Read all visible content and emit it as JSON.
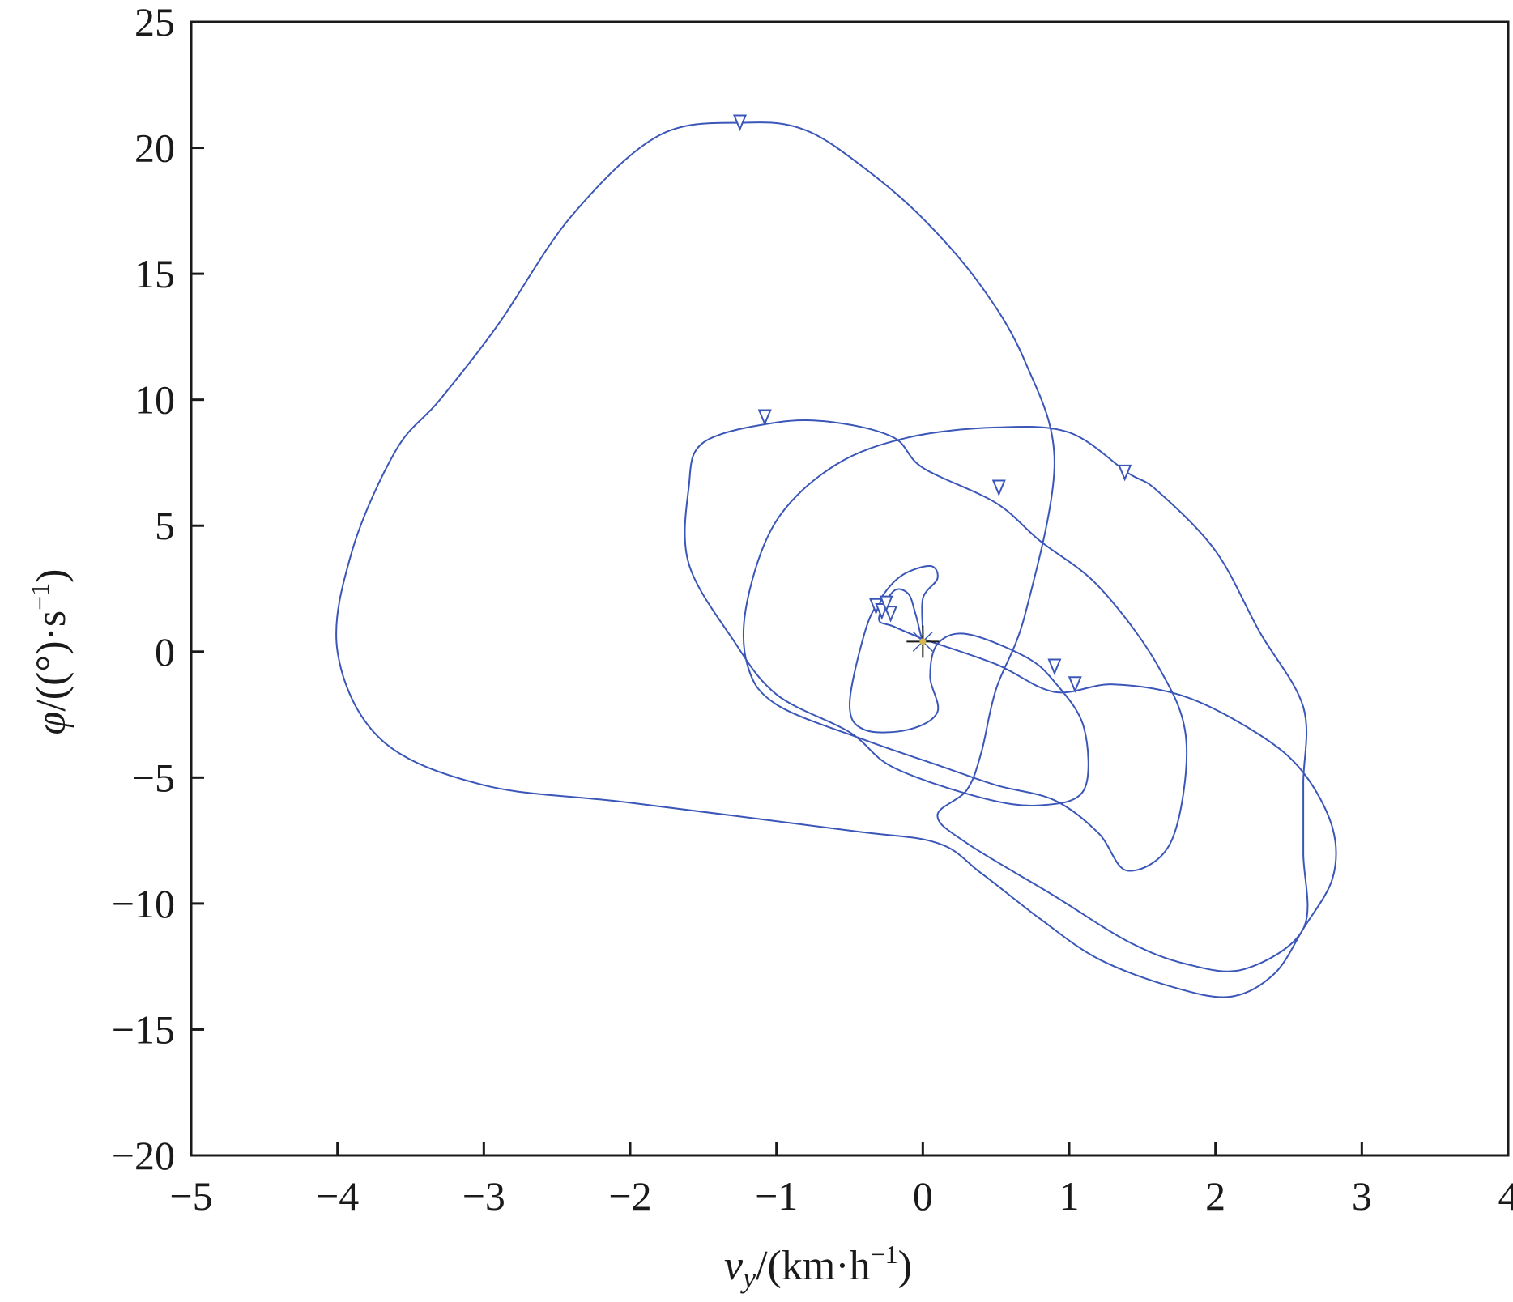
{
  "chart_data": {
    "type": "line",
    "xlabel": "v_y/(km·h⁻¹)",
    "xlabel_parts": {
      "sym": "v",
      "sub": "y",
      "unit": "/(km·h",
      "exp": "−1",
      "close": ")"
    },
    "ylabel": "φ/((°)·s⁻¹)",
    "ylabel_parts": {
      "sym": "φ",
      "unit": "/((°)·s",
      "exp": "−1",
      "close": ")"
    },
    "xlim": [
      -5,
      4
    ],
    "ylim": [
      -20,
      25
    ],
    "xticks": [
      -5,
      -4,
      -3,
      -2,
      -1,
      0,
      1,
      2,
      3,
      4
    ],
    "yticks": [
      -20,
      -15,
      -10,
      -5,
      0,
      5,
      10,
      15,
      20,
      25
    ],
    "xtick_labels": [
      "−5",
      "−4",
      "−3",
      "−2",
      "−1",
      "0",
      "1",
      "2",
      "3",
      "4"
    ],
    "ytick_labels": [
      "−20",
      "−15",
      "−10",
      "−5",
      "0",
      "5",
      "10",
      "15",
      "20",
      "25"
    ],
    "grid": false,
    "colors": {
      "curve": "#3a56b8",
      "center": "#d4b84a",
      "axis": "#1a1a1a"
    },
    "series": [
      {
        "points": [
          [
            0,
            0.5
          ],
          [
            0.5,
            -0.5
          ],
          [
            0.9,
            -1.6
          ],
          [
            1.3,
            -1.3
          ],
          [
            1.8,
            -1.8
          ],
          [
            2.3,
            -3.3
          ],
          [
            2.6,
            -4.8
          ],
          [
            2.8,
            -7
          ],
          [
            2.8,
            -9
          ],
          [
            2.6,
            -11
          ],
          [
            2.4,
            -12.8
          ],
          [
            2.1,
            -13.7
          ],
          [
            1.7,
            -13.3
          ],
          [
            1.2,
            -12.2
          ],
          [
            0.8,
            -10.6
          ],
          [
            0.4,
            -8.8
          ],
          [
            0.1,
            -7.6
          ],
          [
            -0.5,
            -7.1
          ],
          [
            -2,
            -6
          ],
          [
            -3,
            -5.3
          ],
          [
            -3.7,
            -3.5
          ],
          [
            -4,
            0
          ],
          [
            -3.9,
            4
          ],
          [
            -3.6,
            8
          ],
          [
            -3.3,
            10
          ],
          [
            -2.9,
            13
          ],
          [
            -2.4,
            17.3
          ],
          [
            -1.8,
            20.5
          ],
          [
            -1.2,
            21
          ],
          [
            -0.8,
            20.7
          ],
          [
            -0.4,
            19.2
          ],
          [
            0,
            17.2
          ],
          [
            0.4,
            14.5
          ],
          [
            0.7,
            11.5
          ],
          [
            0.9,
            7.5
          ],
          [
            0.7,
            1.5
          ],
          [
            0.5,
            -1.5
          ],
          [
            0.4,
            -4
          ],
          [
            0.3,
            -5.5
          ],
          [
            0.1,
            -6.5
          ],
          [
            0.3,
            -7.6
          ],
          [
            0.9,
            -9.7
          ],
          [
            1.4,
            -11.5
          ],
          [
            1.8,
            -12.4
          ],
          [
            2.2,
            -12.6
          ],
          [
            2.6,
            -11
          ],
          [
            2.6,
            -8
          ],
          [
            2.6,
            -5.2
          ],
          [
            2.6,
            -2.2
          ],
          [
            2.3,
            0.8
          ],
          [
            2,
            4
          ],
          [
            1.6,
            6.4
          ],
          [
            1.4,
            7.1
          ],
          [
            1,
            8.7
          ],
          [
            0.5,
            8.9
          ],
          [
            -0.1,
            8.5
          ],
          [
            -0.6,
            7.4
          ],
          [
            -1,
            5.2
          ],
          [
            -1.2,
            2
          ],
          [
            -1.2,
            -0.5
          ],
          [
            -1,
            -2.1
          ],
          [
            -0.4,
            -3.5
          ],
          [
            0.1,
            -4.5
          ],
          [
            0.5,
            -5.3
          ],
          [
            0.9,
            -5.9
          ],
          [
            1.2,
            -7.2
          ],
          [
            1.4,
            -8.7
          ],
          [
            1.7,
            -7.5
          ],
          [
            1.8,
            -3.5
          ],
          [
            1.6,
            -0.5
          ],
          [
            1.2,
            2.6
          ],
          [
            0.8,
            4.4
          ],
          [
            0.5,
            5.9
          ],
          [
            0,
            7.3
          ],
          [
            -0.2,
            8.5
          ],
          [
            -0.6,
            9.1
          ],
          [
            -1,
            9.1
          ],
          [
            -1.5,
            8.3
          ],
          [
            -1.6,
            6.5
          ],
          [
            -1.6,
            3.5
          ],
          [
            -1.3,
            0.5
          ],
          [
            -1,
            -1.7
          ],
          [
            -0.5,
            -3.2
          ],
          [
            -0.2,
            -4.6
          ],
          [
            0.4,
            -5.8
          ],
          [
            0.8,
            -6.1
          ],
          [
            1.1,
            -5.5
          ],
          [
            1.1,
            -3
          ],
          [
            0.9,
            -1.2
          ],
          [
            0.7,
            -0.2
          ],
          [
            0.3,
            0.7
          ],
          [
            0.1,
            0.3
          ],
          [
            0.05,
            -1
          ],
          [
            0.1,
            -2.4
          ],
          [
            -0.1,
            -3.1
          ],
          [
            -0.4,
            -3.1
          ],
          [
            -0.5,
            -2.1
          ],
          [
            -0.4,
            0.7
          ],
          [
            -0.3,
            2
          ],
          [
            -0.15,
            3
          ],
          [
            0.05,
            3.4
          ],
          [
            0.1,
            2.9
          ],
          [
            0,
            2.1
          ],
          [
            0,
            0.5
          ],
          [
            -0.05,
            1.5
          ],
          [
            -0.1,
            2.3
          ],
          [
            -0.2,
            2.4
          ],
          [
            -0.3,
            1.3
          ],
          [
            -0.2,
            1
          ],
          [
            0,
            0.5
          ]
        ]
      }
    ],
    "markers": [
      [
        -1.25,
        21
      ],
      [
        -1.08,
        9.3
      ],
      [
        0.52,
        6.5
      ],
      [
        1.38,
        7.1
      ],
      [
        0.9,
        -0.6
      ],
      [
        1.04,
        -1.3
      ],
      [
        -0.32,
        1.8
      ],
      [
        -0.28,
        1.6
      ],
      [
        -0.22,
        1.5
      ],
      [
        -0.25,
        1.9
      ]
    ],
    "center": [
      0,
      0.4
    ]
  }
}
